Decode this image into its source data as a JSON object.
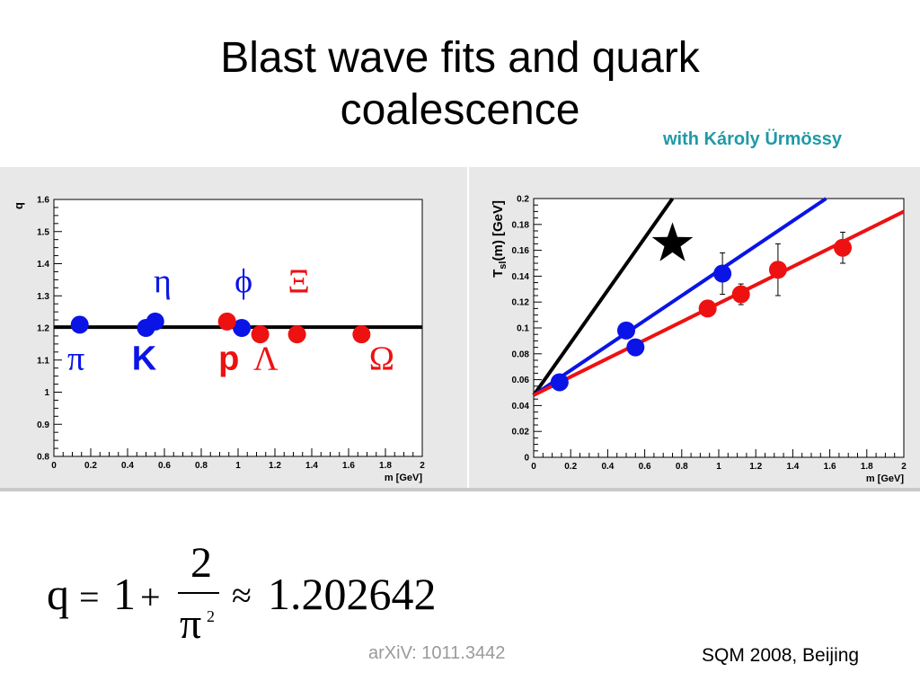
{
  "slide": {
    "title_line1": "Blast wave fits and quark",
    "title_line2": "coalescence",
    "credit": "with Károly Ürmössy",
    "arxiv": "arXiV: 1011.3442",
    "conference": "SQM 2008, Beijing"
  },
  "formula": {
    "lhs": "q",
    "eq": "=",
    "one": "1",
    "plus": "+",
    "num": "2",
    "den": "π",
    "den_exp": "2",
    "approx": "≈",
    "value": "1.202642"
  },
  "chart_data": [
    {
      "type": "scatter",
      "title": "",
      "xlabel": "m [GeV]",
      "ylabel": "q",
      "xlim": [
        0,
        2
      ],
      "ylim": [
        0.8,
        1.6
      ],
      "xticks": [
        "0",
        "0.2",
        "0.4",
        "0.6",
        "0.8",
        "1",
        "1.2",
        "1.4",
        "1.6",
        "1.8",
        "2"
      ],
      "yticks": [
        "0.8",
        "0.9",
        "1",
        "1.1",
        "1.2",
        "1.3",
        "1.4",
        "1.5",
        "1.6"
      ],
      "xtick_values": [
        0,
        0.2,
        0.4,
        0.6,
        0.8,
        1,
        1.2,
        1.4,
        1.6,
        1.8,
        2
      ],
      "ytick_values": [
        0.8,
        0.9,
        1,
        1.1,
        1.2,
        1.3,
        1.4,
        1.5,
        1.6
      ],
      "reference_line": {
        "y": 1.2026,
        "color": "#000000"
      },
      "series": [
        {
          "color": "#0a14e6",
          "points": [
            [
              0.14,
              1.21
            ],
            [
              0.5,
              1.2
            ],
            [
              0.55,
              1.22
            ],
            [
              1.02,
              1.2
            ]
          ]
        },
        {
          "color": "#ee1111",
          "points": [
            [
              0.94,
              1.22
            ],
            [
              1.12,
              1.18
            ],
            [
              1.32,
              1.18
            ],
            [
              1.67,
              1.18
            ]
          ]
        }
      ],
      "annotations": [
        {
          "text": "η",
          "x": 0.59,
          "y": 1.31,
          "color": "#0a14e6",
          "style": "serif"
        },
        {
          "text": "ϕ",
          "x": 1.03,
          "y": 1.31,
          "color": "#0a14e6",
          "style": "serif"
        },
        {
          "text": "Ξ",
          "x": 1.33,
          "y": 1.31,
          "color": "#ee1111",
          "style": "serif"
        },
        {
          "text": "π",
          "x": 0.12,
          "y": 1.07,
          "color": "#0a14e6",
          "style": "serif"
        },
        {
          "text": "K",
          "x": 0.49,
          "y": 1.07,
          "color": "#0a14e6",
          "style": "bold"
        },
        {
          "text": "p",
          "x": 0.95,
          "y": 1.07,
          "color": "#ee1111",
          "style": "bold"
        },
        {
          "text": "Λ",
          "x": 1.15,
          "y": 1.07,
          "color": "#ee1111",
          "style": "serif"
        },
        {
          "text": "Ω",
          "x": 1.78,
          "y": 1.07,
          "color": "#ee1111",
          "style": "serif"
        }
      ]
    },
    {
      "type": "scatter",
      "title": "",
      "xlabel": "m [GeV]",
      "ylabel": "T",
      "ylabel_sub": "sl",
      "ylabel_rest": "(m) [GeV]",
      "xlim": [
        0,
        2
      ],
      "ylim": [
        0,
        0.2
      ],
      "xticks": [
        "0",
        "0.2",
        "0.4",
        "0.6",
        "0.8",
        "1",
        "1.2",
        "1.4",
        "1.6",
        "1.8",
        "2"
      ],
      "yticks": [
        "0",
        "0.02",
        "0.04",
        "0.06",
        "0.08",
        "0.1",
        "0.12",
        "0.14",
        "0.16",
        "0.18",
        "0.2"
      ],
      "xtick_values": [
        0,
        0.2,
        0.4,
        0.6,
        0.8,
        1,
        1.2,
        1.4,
        1.6,
        1.8,
        2
      ],
      "ytick_values": [
        0,
        0.02,
        0.04,
        0.06,
        0.08,
        0.1,
        0.12,
        0.14,
        0.16,
        0.18,
        0.2
      ],
      "lines": [
        {
          "color": "#000000",
          "x0": 0,
          "y0": 0.048,
          "x1": 0.75,
          "y1": 0.2
        },
        {
          "color": "#0a14e6",
          "x0": 0,
          "y0": 0.048,
          "x1": 1.58,
          "y1": 0.2
        },
        {
          "color": "#ee1111",
          "x0": 0,
          "y0": 0.048,
          "x1": 2.0,
          "y1": 0.19
        }
      ],
      "series": [
        {
          "color": "#0a14e6",
          "points": [
            [
              0.14,
              0.058,
              0
            ],
            [
              0.5,
              0.098,
              0
            ],
            [
              0.55,
              0.085,
              0
            ],
            [
              1.02,
              0.142,
              0.016
            ]
          ]
        },
        {
          "color": "#ee1111",
          "points": [
            [
              0.94,
              0.115,
              0.005
            ],
            [
              1.12,
              0.126,
              0.008
            ],
            [
              1.32,
              0.145,
              0.02
            ],
            [
              1.67,
              0.162,
              0.012
            ]
          ]
        }
      ],
      "marker": {
        "type": "star",
        "x": 0.75,
        "y": 0.165,
        "color": "#000000"
      }
    }
  ]
}
